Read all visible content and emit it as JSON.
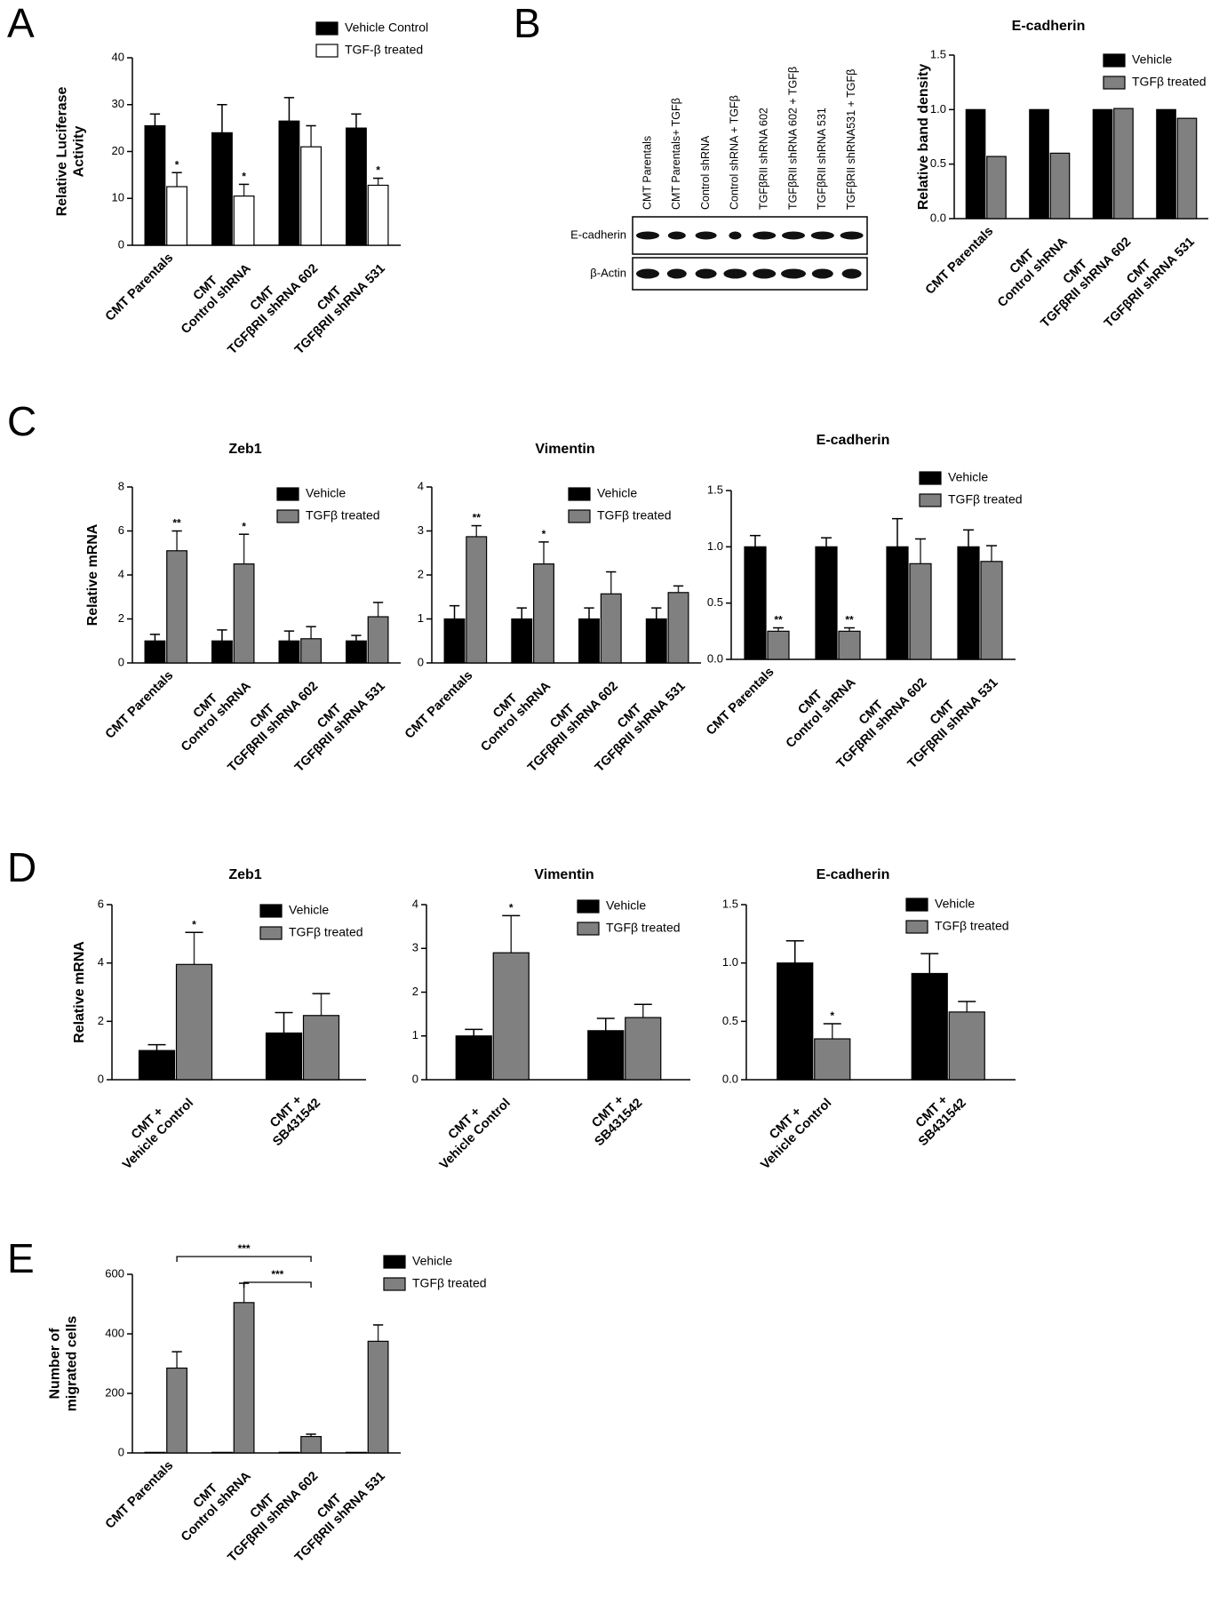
{
  "panels": [
    "A",
    "B",
    "C",
    "D",
    "E"
  ],
  "blot": {
    "lanes": [
      "CMT Parentals",
      "CMT Parentals+ TGFβ",
      "Control shRNA",
      "Control shRNA + TGFβ",
      "TGFβRII shRNA 602",
      "TGFβRII shRNA 602 + TGFβ",
      "TGFβRII shRNA 531",
      "TGFβRII shRNA531 + TGFβ"
    ],
    "rows": [
      "E-cadherin",
      "β-Actin"
    ]
  },
  "chart_data": [
    {
      "type": "bar",
      "ylabel": [
        "Relative Luciferase",
        "Activity"
      ],
      "categories": [
        [
          "CMT Parentals"
        ],
        [
          "CMT",
          "Control shRNA"
        ],
        [
          "CMT",
          "TGFβRII shRNA 602"
        ],
        [
          "CMT",
          "TGFβRII shRNA 531"
        ]
      ],
      "ylim": [
        0,
        40
      ],
      "yticks": [
        0,
        10,
        20,
        30,
        40
      ],
      "series": [
        {
          "name": "Vehicle Control",
          "color": "#000000",
          "values": [
            25.5,
            24,
            26.5,
            25
          ],
          "errors": [
            2.5,
            6,
            5,
            3
          ]
        },
        {
          "name": "TGF-β treated",
          "color": "#ffffff",
          "values": [
            12.5,
            10.5,
            21,
            12.8
          ],
          "errors": [
            3,
            2.5,
            4.5,
            1.5
          ],
          "annotations": [
            "*",
            "*",
            null,
            "*"
          ]
        }
      ]
    },
    {
      "type": "bar",
      "title": "E-cadherin",
      "ylabel": [
        "Relative band density"
      ],
      "categories": [
        [
          "CMT Parentals"
        ],
        [
          "CMT",
          "Control shRNA"
        ],
        [
          "CMT",
          "TGFβRII shRNA 602"
        ],
        [
          "CMT",
          "TGFβRII shRNA 531"
        ]
      ],
      "ylim": [
        0,
        1.5
      ],
      "yticks": [
        {
          "value": 0,
          "label": "0.0"
        },
        0.5,
        {
          "value": 1,
          "label": "1.0"
        },
        1.5
      ],
      "series": [
        {
          "name": "Vehicle",
          "color": "#000000",
          "values": [
            1,
            1,
            1,
            1
          ]
        },
        {
          "name": "TGFβ treated",
          "color": "#808080",
          "values": [
            0.57,
            0.6,
            1.01,
            0.92
          ]
        }
      ]
    },
    {
      "type": "bar",
      "title": "Zeb1",
      "ylabel": [
        "Relative mRNA"
      ],
      "categories": [
        [
          "CMT Parentals"
        ],
        [
          "CMT",
          "Control shRNA"
        ],
        [
          "CMT",
          "TGFβRII shRNA 602"
        ],
        [
          "CMT",
          "TGFβRII shRNA 531"
        ]
      ],
      "ylim": [
        0,
        8
      ],
      "yticks": [
        0,
        2,
        4,
        6,
        8
      ],
      "series": [
        {
          "name": "Vehicle",
          "color": "#000000",
          "values": [
            1,
            1,
            1,
            1
          ],
          "errors": [
            0.3,
            0.5,
            0.45,
            0.25
          ]
        },
        {
          "name": "TGFβ treated",
          "color": "#808080",
          "values": [
            5.1,
            4.5,
            1.1,
            2.1
          ],
          "errors": [
            0.9,
            1.35,
            0.55,
            0.65
          ],
          "annotations": [
            "**",
            "*",
            null,
            null
          ]
        }
      ]
    },
    {
      "type": "bar",
      "title": "Vimentin",
      "categories": [
        [
          "CMT Parentals"
        ],
        [
          "CMT",
          "Control shRNA"
        ],
        [
          "CMT",
          "TGFβRII shRNA 602"
        ],
        [
          "CMT",
          "TGFβRII shRNA 531"
        ]
      ],
      "ylim": [
        0,
        4
      ],
      "yticks": [
        0,
        1,
        2,
        3,
        4
      ],
      "series": [
        {
          "name": "Vehicle",
          "color": "#000000",
          "values": [
            1,
            1,
            1,
            1
          ],
          "errors": [
            0.3,
            0.25,
            0.25,
            0.25
          ]
        },
        {
          "name": "TGFβ treated",
          "color": "#808080",
          "values": [
            2.87,
            2.25,
            1.57,
            1.6
          ],
          "errors": [
            0.25,
            0.5,
            0.5,
            0.15
          ],
          "annotations": [
            "**",
            "*",
            null,
            null
          ]
        }
      ]
    },
    {
      "type": "bar",
      "title": "E-cadherin",
      "categories": [
        [
          "CMT Parentals"
        ],
        [
          "CMT",
          "Control shRNA"
        ],
        [
          "CMT",
          "TGFβRII shRNA 602"
        ],
        [
          "CMT",
          "TGFβRII shRNA 531"
        ]
      ],
      "ylim": [
        0,
        1.5
      ],
      "yticks": [
        {
          "value": 0,
          "label": "0.0"
        },
        0.5,
        {
          "value": 1,
          "label": "1.0"
        },
        1.5
      ],
      "series": [
        {
          "name": "Vehicle",
          "color": "#000000",
          "values": [
            1,
            1,
            1,
            1
          ],
          "errors": [
            0.1,
            0.08,
            0.25,
            0.15
          ]
        },
        {
          "name": "TGFβ treated",
          "color": "#808080",
          "values": [
            0.25,
            0.25,
            0.85,
            0.87
          ],
          "errors": [
            0.03,
            0.03,
            0.22,
            0.14
          ],
          "annotations": [
            "**",
            "**",
            null,
            null
          ]
        }
      ]
    },
    {
      "type": "bar",
      "title": "Zeb1",
      "ylabel": [
        "Relative mRNA"
      ],
      "categories": [
        [
          "CMT +",
          "Vehicle Control"
        ],
        [
          "CMT +",
          "SB431542"
        ]
      ],
      "ylim": [
        0,
        6
      ],
      "yticks": [
        0,
        2,
        4,
        6
      ],
      "series": [
        {
          "name": "Vehicle",
          "color": "#000000",
          "values": [
            1,
            1.6
          ],
          "errors": [
            0.2,
            0.7
          ]
        },
        {
          "name": "TGFβ treated",
          "color": "#808080",
          "values": [
            3.95,
            2.2
          ],
          "errors": [
            1.1,
            0.75
          ],
          "annotations": [
            "*",
            null
          ]
        }
      ]
    },
    {
      "type": "bar",
      "title": "Vimentin",
      "categories": [
        [
          "CMT +",
          "Vehicle Control"
        ],
        [
          "CMT +",
          "SB431542"
        ]
      ],
      "ylim": [
        0,
        4
      ],
      "yticks": [
        0,
        1,
        2,
        3,
        4
      ],
      "series": [
        {
          "name": "Vehicle",
          "color": "#000000",
          "values": [
            1,
            1.12
          ],
          "errors": [
            0.15,
            0.28
          ]
        },
        {
          "name": "TGFβ treated",
          "color": "#808080",
          "values": [
            2.9,
            1.42
          ],
          "errors": [
            0.85,
            0.3
          ],
          "annotations": [
            "*",
            null
          ]
        }
      ]
    },
    {
      "type": "bar",
      "title": "E-cadherin",
      "categories": [
        [
          "CMT +",
          "Vehicle Control"
        ],
        [
          "CMT +",
          "SB431542"
        ]
      ],
      "ylim": [
        0,
        1.5
      ],
      "yticks": [
        {
          "value": 0,
          "label": "0.0"
        },
        0.5,
        {
          "value": 1,
          "label": "1.0"
        },
        1.5
      ],
      "series": [
        {
          "name": "Vehicle",
          "color": "#000000",
          "values": [
            1,
            0.91
          ],
          "errors": [
            0.19,
            0.17
          ]
        },
        {
          "name": "TGFβ treated",
          "color": "#808080",
          "values": [
            0.35,
            0.58
          ],
          "errors": [
            0.13,
            0.09
          ],
          "annotations": [
            "*",
            null
          ]
        }
      ]
    },
    {
      "type": "bar",
      "ylabel": [
        "Number of",
        "migrated cells"
      ],
      "categories": [
        [
          "CMT Parentals"
        ],
        [
          "CMT",
          "Control shRNA"
        ],
        [
          "CMT",
          "TGFβRII shRNA 602"
        ],
        [
          "CMT",
          "TGFβRII shRNA 531"
        ]
      ],
      "ylim": [
        0,
        600
      ],
      "yticks": [
        0,
        200,
        400,
        600
      ],
      "series": [
        {
          "name": "Vehicle",
          "color": "#000000",
          "values": [
            2,
            2,
            2,
            2
          ]
        },
        {
          "name": "TGFβ treated",
          "color": "#808080",
          "values": [
            285,
            505,
            55,
            375
          ],
          "errors": [
            55,
            65,
            8,
            55
          ]
        }
      ],
      "brackets": [
        "***",
        "***"
      ]
    }
  ]
}
